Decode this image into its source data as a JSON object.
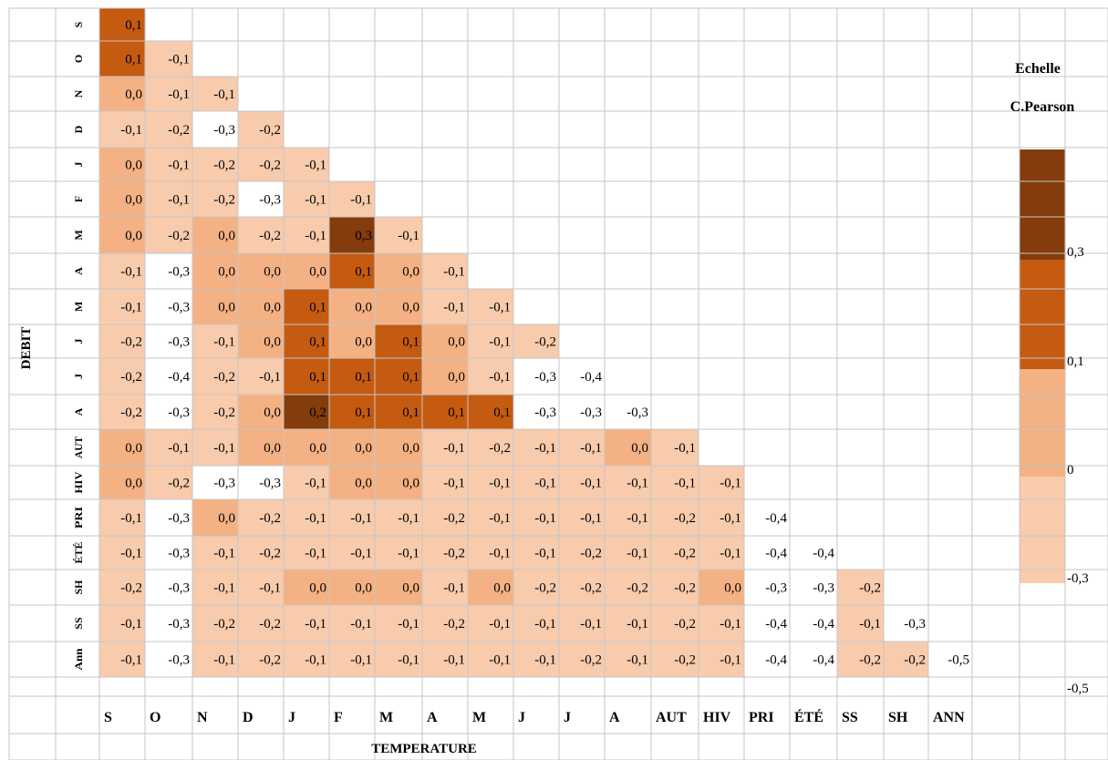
{
  "chart_data": {
    "type": "heatmap",
    "xlabel": "TEMPERATURE",
    "ylabel": "DEBIT",
    "x_labels": [
      "S",
      "O",
      "N",
      "D",
      "J",
      "F",
      "M",
      "A",
      "M",
      "J",
      "J",
      "A",
      "AUT",
      "HIV",
      "PRI",
      "ÉTÉ",
      "SS",
      "SH",
      "ANN"
    ],
    "y_labels": [
      "S",
      "O",
      "N",
      "D",
      "J",
      "F",
      "M",
      "A",
      "M",
      "J",
      "J",
      "A",
      "AUT",
      "HIV",
      "PRI",
      "ÉTÉ",
      "SH",
      "SS",
      "Ann"
    ],
    "rows": [
      [
        "0,1"
      ],
      [
        "0,1",
        "-0,1"
      ],
      [
        "0,0",
        "-0,1",
        "-0,1"
      ],
      [
        "-0,1",
        "-0,2",
        "-0,3",
        "-0,2"
      ],
      [
        "0,0",
        "-0,1",
        "-0,2",
        "-0,2",
        "-0,1"
      ],
      [
        "0,0",
        "-0,1",
        "-0,2",
        "-0,3",
        "-0,1",
        "-0,1"
      ],
      [
        "0,0",
        "-0,2",
        "0,0",
        "-0,2",
        "-0,1",
        "0,3",
        "-0,1"
      ],
      [
        "-0,1",
        "-0,3",
        "0,0",
        "0,0",
        "0,0",
        "0,1",
        "0,0",
        "-0,1"
      ],
      [
        "-0,1",
        "-0,3",
        "0,0",
        "0,0",
        "0,1",
        "0,0",
        "0,0",
        "-0,1",
        "-0,1"
      ],
      [
        "-0,2",
        "-0,3",
        "-0,1",
        "0,0",
        "0,1",
        "0,0",
        "0,1",
        "0,0",
        "-0,1",
        "-0,2"
      ],
      [
        "-0,2",
        "-0,4",
        "-0,2",
        "-0,1",
        "0,1",
        "0,1",
        "0,1",
        "0,0",
        "-0,1",
        "-0,3",
        "-0,4"
      ],
      [
        "-0,2",
        "-0,3",
        "-0,2",
        "0,0",
        "0,2",
        "0,1",
        "0,1",
        "0,1",
        "0,1",
        "-0,3",
        "-0,3",
        "-0,3"
      ],
      [
        "0,0",
        "-0,1",
        "-0,1",
        "0,0",
        "0,0",
        "0,0",
        "0,0",
        "-0,1",
        "-0,2",
        "-0,1",
        "-0,1",
        "0,0",
        "-0,1"
      ],
      [
        "0,0",
        "-0,2",
        "-0,3",
        "-0,3",
        "-0,1",
        "0,0",
        "0,0",
        "-0,1",
        "-0,1",
        "-0,1",
        "-0,1",
        "-0,1",
        "-0,1",
        "-0,1"
      ],
      [
        "-0,1",
        "-0,3",
        "0,0",
        "-0,2",
        "-0,1",
        "-0,1",
        "-0,1",
        "-0,2",
        "-0,1",
        "-0,1",
        "-0,1",
        "-0,1",
        "-0,2",
        "-0,1",
        "-0,4"
      ],
      [
        "-0,1",
        "-0,3",
        "-0,1",
        "-0,2",
        "-0,1",
        "-0,1",
        "-0,1",
        "-0,2",
        "-0,1",
        "-0,1",
        "-0,2",
        "-0,1",
        "-0,2",
        "-0,1",
        "-0,4",
        "-0,4"
      ],
      [
        "-0,2",
        "-0,3",
        "-0,1",
        "-0,1",
        "0,0",
        "0,0",
        "0,0",
        "-0,1",
        "0,0",
        "-0,2",
        "-0,2",
        "-0,2",
        "-0,2",
        "0,0",
        "-0,3",
        "-0,3",
        "-0,2"
      ],
      [
        "-0,1",
        "-0,3",
        "-0,2",
        "-0,2",
        "-0,1",
        "-0,1",
        "-0,1",
        "-0,2",
        "-0,1",
        "-0,1",
        "-0,1",
        "-0,1",
        "-0,2",
        "-0,1",
        "-0,4",
        "-0,4",
        "-0,1",
        "-0,3"
      ],
      [
        "-0,1",
        "-0,3",
        "-0,1",
        "-0,2",
        "-0,1",
        "-0,1",
        "-0,1",
        "-0,1",
        "-0,1",
        "-0,1",
        "-0,2",
        "-0,1",
        "-0,2",
        "-0,1",
        "-0,4",
        "-0,4",
        "-0,2",
        "-0,2",
        "-0,5"
      ]
    ],
    "legend": {
      "title_line1": "Echelle",
      "title_line2": "C.Pearson",
      "labels": [
        "0,3",
        "0,1",
        "0",
        "-0,3",
        "-0,5"
      ],
      "band_colors": [
        "#843c0c",
        "#c55a11",
        "#f4b183",
        "#f8cbad"
      ]
    },
    "color_thresholds": {
      "above_0_2": "#843c0c",
      "from_0_1": "#c55a11",
      "zero": "#f4b183",
      "negative_to_-0_2": "#f8cbad",
      "at_or_below_-0_3": "#ffffff"
    },
    "grid": true
  }
}
